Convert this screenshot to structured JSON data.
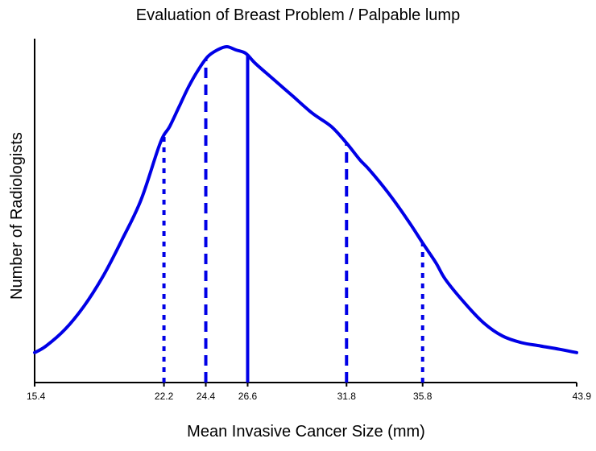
{
  "chart_data": {
    "type": "line",
    "title": "Evaluation of Breast Problem / Palpable lump",
    "xlabel": "Mean Invasive Cancer Size (mm)",
    "ylabel": "Number of Radiologists",
    "xlim": [
      15.4,
      43.9
    ],
    "y_tick_labels": false,
    "x_ticks": [
      "15.4",
      "22.2",
      "24.4",
      "26.6",
      "31.8",
      "35.8",
      "43.9"
    ],
    "series": [
      {
        "kind": "density-curve",
        "x": [
          15.4,
          16.0,
          17.0,
          18.0,
          19.0,
          20.0,
          21.0,
          22.0,
          22.5,
          23.0,
          23.5,
          24.0,
          24.5,
          25.0,
          25.5,
          26.0,
          26.5,
          27.0,
          28.0,
          29.0,
          30.0,
          31.0,
          31.8,
          32.5,
          33.0,
          34.0,
          35.0,
          35.8,
          36.5,
          37.0,
          38.0,
          39.0,
          40.0,
          41.0,
          42.0,
          43.0,
          43.9
        ],
        "y": [
          0.09,
          0.11,
          0.16,
          0.23,
          0.32,
          0.43,
          0.55,
          0.72,
          0.77,
          0.83,
          0.89,
          0.94,
          0.98,
          1.0,
          1.01,
          1.0,
          0.99,
          0.96,
          0.91,
          0.86,
          0.81,
          0.77,
          0.72,
          0.67,
          0.64,
          0.57,
          0.49,
          0.42,
          0.36,
          0.31,
          0.24,
          0.18,
          0.14,
          0.12,
          0.11,
          0.1,
          0.09
        ]
      }
    ],
    "reference_lines": [
      {
        "x": 22.2,
        "style": "dotted"
      },
      {
        "x": 24.4,
        "style": "dashed"
      },
      {
        "x": 26.6,
        "style": "solid"
      },
      {
        "x": 31.8,
        "style": "dashed"
      },
      {
        "x": 35.8,
        "style": "dotted"
      }
    ],
    "colors": {
      "curve": "#0000e6",
      "axis": "#000000"
    },
    "grid": false
  }
}
